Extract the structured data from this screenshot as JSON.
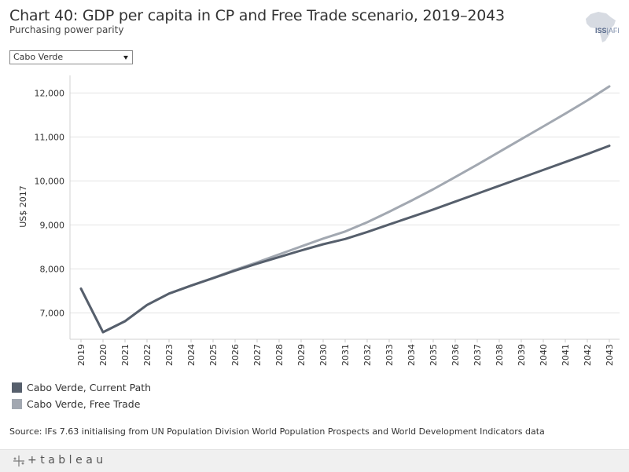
{
  "header": {
    "title": "Chart 40: GDP per capita in CP and Free Trade scenario, 2019–2043",
    "subtitle": "Purchasing power parity",
    "logo_text": "ISS",
    "logo_text2": "AFI"
  },
  "filter": {
    "selected": "Cabo Verde"
  },
  "legend": [
    {
      "label": "Cabo Verde, Current Path",
      "color": "#565f6c"
    },
    {
      "label": "Cabo Verde, Free Trade",
      "color": "#a2a8b1"
    }
  ],
  "source": "Source: IFs 7.63 initialising from UN Population Division World Population Prospects and World Development Indicators data",
  "footer": {
    "brand": "+tableau"
  },
  "chart_data": {
    "type": "line",
    "title": "Chart 40: GDP per capita in CP and Free Trade scenario, 2019–2043",
    "xlabel": "",
    "ylabel": "US$ 2017",
    "ylim": [
      6400,
      12400
    ],
    "yticks": [
      7000,
      8000,
      9000,
      10000,
      11000,
      12000
    ],
    "ytick_labels": [
      "7,000",
      "8,000",
      "9,000",
      "10,000",
      "11,000",
      "12,000"
    ],
    "x": [
      "2019",
      "2020",
      "2021",
      "2022",
      "2023",
      "2024",
      "2025",
      "2026",
      "2027",
      "2028",
      "2029",
      "2030",
      "2031",
      "2032",
      "2033",
      "2034",
      "2035",
      "2036",
      "2037",
      "2038",
      "2039",
      "2040",
      "2041",
      "2042",
      "2043"
    ],
    "series": [
      {
        "name": "Cabo Verde, Current Path",
        "color": "#565f6c",
        "values": [
          7550,
          6560,
          6810,
          7180,
          7440,
          7620,
          7790,
          7960,
          8120,
          8270,
          8420,
          8560,
          8680,
          8840,
          9010,
          9180,
          9350,
          9530,
          9710,
          9890,
          10070,
          10250,
          10430,
          10610,
          10800
        ]
      },
      {
        "name": "Cabo Verde, Free Trade",
        "color": "#a2a8b1",
        "values": [
          7550,
          6560,
          6810,
          7180,
          7440,
          7620,
          7795,
          7980,
          8150,
          8330,
          8510,
          8690,
          8850,
          9060,
          9300,
          9550,
          9810,
          10090,
          10370,
          10660,
          10950,
          11240,
          11530,
          11830,
          12150
        ]
      }
    ]
  }
}
